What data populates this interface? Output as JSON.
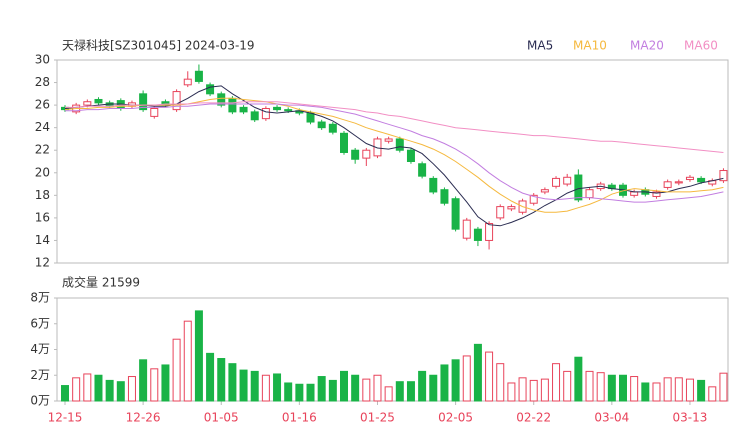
{
  "chart_data": {
    "type": "candlestick",
    "title": "天禄科技[SZ301045] 2024-03-19",
    "volume_title": "成交量 21599",
    "categories": [
      "12-15",
      null,
      null,
      null,
      null,
      null,
      null,
      "12-26",
      null,
      null,
      null,
      null,
      null,
      null,
      "01-05",
      null,
      null,
      null,
      null,
      null,
      null,
      "01-16",
      null,
      null,
      null,
      null,
      null,
      null,
      "01-25",
      null,
      null,
      null,
      null,
      null,
      null,
      "02-05",
      null,
      null,
      null,
      null,
      null,
      null,
      "02-22",
      null,
      null,
      null,
      null,
      null,
      null,
      "03-04",
      null,
      null,
      null,
      null,
      null,
      null,
      "03-13",
      null,
      null,
      null
    ],
    "open": [
      25.8,
      25.4,
      26.0,
      26.5,
      26.2,
      26.4,
      25.9,
      27.0,
      25.0,
      26.3,
      25.6,
      27.8,
      29.0,
      27.8,
      27.0,
      26.6,
      25.8,
      25.4,
      24.8,
      25.8,
      25.6,
      25.5,
      25.3,
      24.5,
      24.3,
      23.5,
      22.0,
      21.3,
      21.5,
      22.8,
      23.0,
      22.0,
      20.8,
      19.5,
      18.5,
      17.7,
      14.2,
      15.0,
      14.0,
      16.0,
      16.8,
      16.5,
      17.3,
      18.3,
      18.8,
      19.0,
      19.8,
      17.8,
      18.6,
      18.9,
      18.9,
      18.0,
      18.5,
      17.9,
      18.7,
      19.1,
      19.4,
      19.5,
      19.0,
      19.3
    ],
    "high": [
      26.0,
      26.2,
      26.5,
      26.7,
      26.4,
      26.6,
      26.4,
      27.3,
      25.9,
      26.5,
      27.4,
      29.0,
      29.6,
      28.0,
      27.2,
      26.8,
      26.0,
      25.6,
      25.9,
      26.0,
      25.8,
      25.7,
      25.5,
      24.7,
      24.5,
      23.7,
      22.2,
      22.2,
      23.2,
      23.2,
      23.2,
      22.2,
      21.0,
      19.7,
      18.7,
      17.9,
      16.0,
      15.2,
      15.7,
      17.2,
      17.2,
      17.7,
      18.2,
      18.7,
      19.7,
      19.9,
      20.3,
      18.7,
      19.2,
      19.1,
      19.1,
      18.5,
      18.7,
      18.5,
      19.4,
      19.4,
      19.8,
      19.7,
      19.5,
      20.4
    ],
    "low": [
      25.4,
      25.2,
      25.8,
      26.0,
      25.7,
      25.5,
      25.7,
      25.4,
      24.8,
      25.8,
      25.4,
      27.6,
      27.9,
      26.8,
      25.8,
      25.2,
      25.2,
      24.5,
      24.6,
      25.4,
      25.3,
      25.1,
      24.3,
      23.8,
      23.4,
      21.6,
      20.8,
      20.6,
      21.3,
      22.6,
      21.8,
      20.8,
      19.5,
      18.1,
      17.1,
      14.8,
      14.0,
      13.5,
      13.2,
      15.8,
      16.6,
      16.3,
      17.1,
      18.1,
      18.6,
      18.8,
      17.4,
      17.6,
      18.4,
      18.4,
      17.8,
      17.8,
      17.9,
      17.7,
      18.5,
      18.9,
      19.2,
      19.0,
      18.8,
      19.1
    ],
    "close": [
      25.6,
      26.0,
      26.3,
      26.2,
      25.9,
      25.7,
      26.2,
      25.6,
      25.7,
      26.0,
      27.2,
      28.3,
      28.1,
      27.0,
      26.0,
      25.4,
      25.4,
      24.7,
      25.7,
      25.6,
      25.5,
      25.3,
      24.5,
      24.0,
      23.6,
      21.8,
      21.2,
      22.0,
      23.0,
      23.0,
      22.0,
      21.0,
      19.7,
      18.3,
      17.3,
      15.0,
      15.8,
      14.0,
      15.5,
      17.0,
      17.0,
      17.5,
      18.0,
      18.5,
      19.5,
      19.6,
      17.6,
      18.5,
      19.0,
      18.6,
      18.0,
      18.3,
      18.1,
      18.3,
      19.2,
      19.2,
      19.6,
      19.2,
      19.3,
      20.2
    ],
    "volume": [
      1.2,
      1.8,
      2.1,
      2.0,
      1.6,
      1.5,
      1.9,
      3.2,
      2.5,
      2.8,
      4.8,
      6.2,
      7.0,
      3.7,
      3.3,
      2.9,
      2.4,
      2.3,
      2.0,
      2.1,
      1.4,
      1.3,
      1.3,
      1.9,
      1.6,
      2.3,
      2.0,
      1.7,
      2.0,
      1.1,
      1.5,
      1.5,
      2.3,
      2.0,
      2.8,
      3.2,
      3.5,
      4.4,
      3.8,
      2.9,
      1.4,
      1.8,
      1.6,
      1.7,
      2.9,
      2.3,
      3.4,
      2.3,
      2.2,
      2.0,
      2.0,
      1.9,
      1.4,
      1.4,
      1.8,
      1.8,
      1.7,
      1.6,
      1.1,
      2.16
    ],
    "up_color": "#e8435a",
    "down_color": "#19b347",
    "series": [
      {
        "name": "MA5",
        "color": "#2b2d52",
        "values": [
          25.7,
          25.8,
          25.9,
          26.0,
          26.1,
          26.1,
          26.0,
          26.0,
          25.9,
          25.9,
          26.1,
          26.6,
          27.2,
          27.6,
          27.7,
          27.0,
          26.4,
          25.8,
          25.4,
          25.3,
          25.4,
          25.5,
          25.3,
          25.0,
          24.6,
          24.0,
          23.3,
          22.6,
          22.2,
          22.1,
          22.3,
          22.2,
          21.7,
          20.8,
          19.8,
          18.6,
          17.4,
          16.1,
          15.4,
          15.3,
          15.6,
          16.0,
          16.5,
          17.1,
          17.6,
          18.2,
          18.6,
          18.7,
          18.8,
          18.6,
          18.5,
          18.3,
          18.3,
          18.2,
          18.3,
          18.6,
          18.8,
          19.1,
          19.3,
          19.5
        ]
      },
      {
        "name": "MA10",
        "color": "#f5b93f",
        "values": [
          25.6,
          25.7,
          25.7,
          25.8,
          25.8,
          25.9,
          25.9,
          26.0,
          26.0,
          26.0,
          26.0,
          26.1,
          26.3,
          26.5,
          26.6,
          26.6,
          26.5,
          26.4,
          26.3,
          26.1,
          25.9,
          25.6,
          25.4,
          25.2,
          25.0,
          24.7,
          24.4,
          24.0,
          23.7,
          23.4,
          23.1,
          22.8,
          22.5,
          22.1,
          21.6,
          21.0,
          20.3,
          19.6,
          18.8,
          18.1,
          17.5,
          17.0,
          16.7,
          16.5,
          16.5,
          16.6,
          16.9,
          17.2,
          17.6,
          18.1,
          18.4,
          18.6,
          18.5,
          18.4,
          18.3,
          18.3,
          18.3,
          18.4,
          18.5,
          18.7
        ]
      },
      {
        "name": "MA20",
        "color": "#c27ee0",
        "values": [
          25.5,
          25.5,
          25.6,
          25.6,
          25.7,
          25.7,
          25.7,
          25.8,
          25.8,
          25.8,
          25.9,
          25.9,
          26.0,
          26.1,
          26.1,
          26.1,
          26.1,
          26.1,
          26.1,
          26.1,
          26.0,
          26.0,
          25.9,
          25.8,
          25.6,
          25.4,
          25.2,
          24.9,
          24.6,
          24.3,
          24.0,
          23.7,
          23.3,
          23.0,
          22.6,
          22.1,
          21.5,
          20.8,
          20.0,
          19.3,
          18.7,
          18.2,
          17.9,
          17.7,
          17.6,
          17.7,
          17.8,
          17.8,
          17.7,
          17.6,
          17.5,
          17.4,
          17.4,
          17.5,
          17.6,
          17.7,
          17.8,
          17.9,
          18.1,
          18.3
        ]
      },
      {
        "name": "MA60",
        "color": "#f28fc4",
        "values": [
          25.8,
          25.8,
          25.9,
          25.9,
          25.9,
          26.0,
          26.0,
          26.0,
          26.0,
          26.1,
          26.1,
          26.1,
          26.2,
          26.2,
          26.2,
          26.2,
          26.3,
          26.3,
          26.3,
          26.3,
          26.2,
          26.1,
          26.0,
          25.9,
          25.8,
          25.7,
          25.6,
          25.4,
          25.3,
          25.1,
          25.0,
          24.8,
          24.6,
          24.4,
          24.2,
          24.0,
          23.9,
          23.8,
          23.7,
          23.6,
          23.5,
          23.4,
          23.3,
          23.3,
          23.2,
          23.1,
          23.0,
          22.9,
          22.8,
          22.8,
          22.7,
          22.6,
          22.5,
          22.4,
          22.3,
          22.2,
          22.1,
          22.0,
          21.9,
          21.8
        ]
      }
    ],
    "ylim": [
      12,
      30
    ],
    "yticks": [
      12,
      14,
      16,
      18,
      20,
      22,
      24,
      26,
      28,
      30
    ],
    "vlim": [
      0,
      8
    ],
    "vticks": [
      {
        "value": 0,
        "label": "0万"
      },
      {
        "value": 2,
        "label": "2万"
      },
      {
        "value": 4,
        "label": "4万"
      },
      {
        "value": 6,
        "label": "6万"
      },
      {
        "value": 8,
        "label": "8万"
      }
    ]
  }
}
